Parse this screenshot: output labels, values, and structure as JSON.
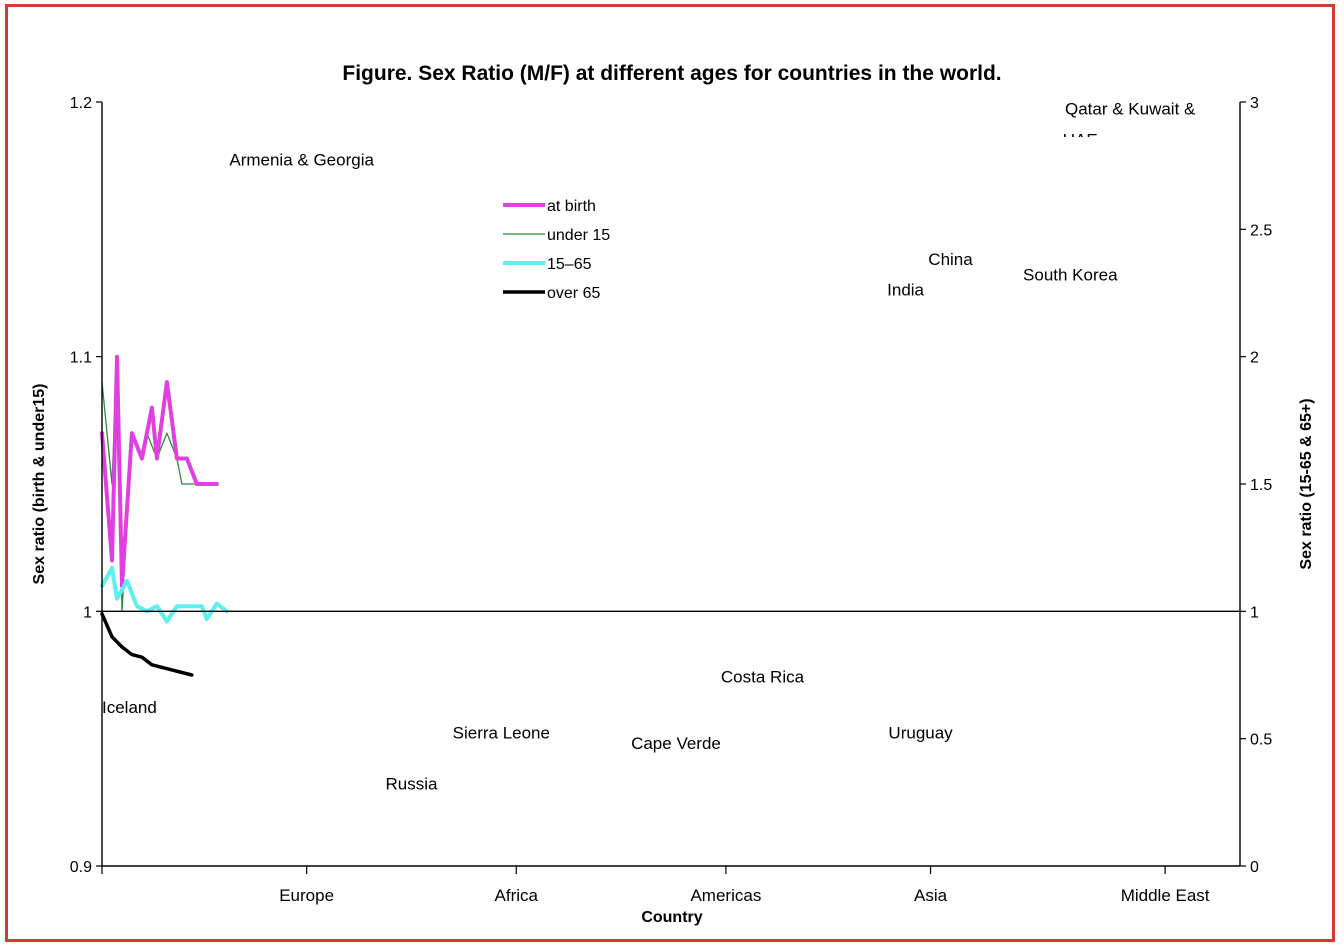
{
  "chart_data": {
    "type": "line",
    "title": "Figure. Sex Ratio (M/F) at different ages for countries in the world.",
    "xlabel": "Country",
    "ylabel_left": "Sex ratio (birth & under15)",
    "ylabel_right": "Sex ratio (15-65 & 65+)",
    "y_left_range": [
      0.9,
      1.2
    ],
    "y_left_ticks": [
      "0.9",
      "1",
      "1.1",
      "1.2"
    ],
    "y_right_range": [
      0,
      3
    ],
    "y_right_ticks": [
      "0",
      "0.5",
      "1",
      "1.5",
      "2",
      "2.5",
      "3"
    ],
    "reference_line_left": 1.0,
    "x_count": 229,
    "regions": [
      {
        "label": "Europe",
        "x": 41
      },
      {
        "label": "Africa",
        "x": 83
      },
      {
        "label": "Americas",
        "x": 125
      },
      {
        "label": "Asia",
        "x": 166
      },
      {
        "label": "Middle East",
        "x": 213
      }
    ],
    "legend_position": "top-center",
    "series": [
      {
        "name": "at birth",
        "axis": "left",
        "color": "#e040e0",
        "width": 4,
        "points": [
          [
            0,
            1.07
          ],
          [
            2,
            1.02
          ],
          [
            3,
            1.1
          ],
          [
            4,
            1.01
          ],
          [
            6,
            1.07
          ],
          [
            8,
            1.06
          ],
          [
            10,
            1.08
          ],
          [
            11,
            1.06
          ],
          [
            13,
            1.09
          ],
          [
            15,
            1.06
          ],
          [
            17,
            1.06
          ],
          [
            19,
            1.05
          ],
          [
            21,
            1.05
          ],
          [
            23,
            1.05
          ],
          [
            21,
            1.05
          ],
          [
            21,
            1.05
          ],
          [
            22,
            1.05
          ],
          [
            23,
            1.05
          ],
          [
            21,
            1.05
          ],
          [
            21,
            1.05
          ],
          [
            21,
            1.05
          ],
          [
            23,
            1.05
          ],
          [
            21,
            1.05
          ],
          [
            21,
            1.05
          ],
          [
            21,
            1.05
          ],
          [
            22,
            1.05
          ],
          [
            21,
            1.05
          ],
          [
            21,
            1.05
          ],
          [
            21,
            1.05
          ],
          [
            23,
            1.05
          ],
          [
            21,
            1.05
          ],
          [
            21,
            1.05
          ],
          [
            21,
            1.05
          ],
          [
            21,
            1.05
          ],
          [
            21,
            1.05
          ],
          [
            21,
            1.05
          ],
          [
            21,
            1.05
          ],
          [
            21,
            1.05
          ],
          [
            21,
            1.05
          ],
          [
            21,
            1.05
          ],
          [
            21,
            1.05
          ],
          [
            21,
            1.05
          ],
          [
            21,
            1.05
          ],
          [
            21,
            1.05
          ],
          [
            21,
            1.05
          ],
          [
            21,
            1.05
          ],
          [
            21,
            1.05
          ],
          [
            21,
            1.05
          ],
          [
            21,
            1.05
          ],
          [
            21,
            1.05
          ],
          [
            21,
            1.05
          ],
          [
            21,
            1.05
          ],
          [
            21,
            1.05
          ],
          [
            21,
            1.05
          ],
          [
            21,
            1.05
          ],
          [
            21,
            1.05
          ],
          [
            21,
            1.05
          ],
          [
            21,
            1.05
          ],
          [
            21,
            1.05
          ],
          [
            21,
            1.05
          ]
        ]
      },
      {
        "name": "under 15",
        "axis": "left",
        "color": "#2e8b3e",
        "width": 1.3,
        "points": [
          [
            0,
            1.09
          ],
          [
            2,
            1.05
          ],
          [
            3,
            1.1
          ],
          [
            4,
            1.0
          ],
          [
            6,
            1.07
          ],
          [
            8,
            1.06
          ],
          [
            9,
            1.07
          ],
          [
            11,
            1.06
          ],
          [
            13,
            1.07
          ],
          [
            15,
            1.06
          ],
          [
            16,
            1.05
          ],
          [
            18,
            1.05
          ],
          [
            20,
            1.05
          ],
          [
            21,
            1.05
          ],
          [
            21,
            1.05
          ],
          [
            22,
            1.05
          ],
          [
            20,
            1.05
          ],
          [
            21,
            1.05
          ],
          [
            21,
            1.05
          ],
          [
            22,
            1.05
          ],
          [
            21,
            1.05
          ],
          [
            21,
            1.05
          ],
          [
            21,
            1.05
          ]
        ]
      },
      {
        "name": "15–65",
        "axis": "right",
        "color": "#5cf0f0",
        "width": 4,
        "points": [
          [
            0,
            1.1
          ],
          [
            2,
            1.17
          ],
          [
            3,
            1.05
          ],
          [
            5,
            1.12
          ],
          [
            7,
            1.02
          ],
          [
            9,
            1.0
          ],
          [
            11,
            1.02
          ],
          [
            13,
            0.96
          ],
          [
            15,
            1.02
          ],
          [
            20,
            1.02
          ],
          [
            21,
            0.97
          ],
          [
            23,
            1.03
          ],
          [
            25,
            1.0
          ]
        ]
      },
      {
        "name": "over 65",
        "axis": "right",
        "color": "#000000",
        "width": 3.5,
        "points": [
          [
            0,
            0.99
          ],
          [
            2,
            0.9
          ],
          [
            4,
            0.86
          ],
          [
            6,
            0.83
          ],
          [
            8,
            0.82
          ],
          [
            10,
            0.79
          ],
          [
            14,
            0.77
          ],
          [
            18,
            0.75
          ]
        ]
      }
    ],
    "annotations": [
      {
        "text": "Armenia & Georgia",
        "x": 40,
        "y_left": 1.175,
        "anchor": "middle"
      },
      {
        "text": "Iceland",
        "x": 0,
        "y_left": 0.96,
        "anchor": "start"
      },
      {
        "text": "Russia",
        "x": 62,
        "y_left": 0.93,
        "anchor": "middle"
      },
      {
        "text": "Sierra Leone",
        "x": 80,
        "y_left": 0.95,
        "anchor": "middle"
      },
      {
        "text": "Cape Verde",
        "x": 115,
        "y_left": 0.946,
        "anchor": "middle"
      },
      {
        "text": "Costa Rica",
        "x": 124,
        "y_left": 0.972,
        "anchor": "start"
      },
      {
        "text": "India",
        "x": 161,
        "y_left": 1.124,
        "anchor": "middle"
      },
      {
        "text": "China",
        "x": 170,
        "y_left": 1.136,
        "anchor": "middle"
      },
      {
        "text": "South Korea",
        "x": 194,
        "y_left": 1.13,
        "anchor": "middle"
      },
      {
        "text": "Uruguay",
        "x": 164,
        "y_left": 0.95,
        "anchor": "middle"
      },
      {
        "text": "Qatar & Kuwait &",
        "x": 206,
        "y_left": 1.195,
        "anchor": "middle"
      },
      {
        "text": "UAE",
        "x": 196,
        "y_left": 1.183,
        "anchor": "middle"
      }
    ]
  }
}
